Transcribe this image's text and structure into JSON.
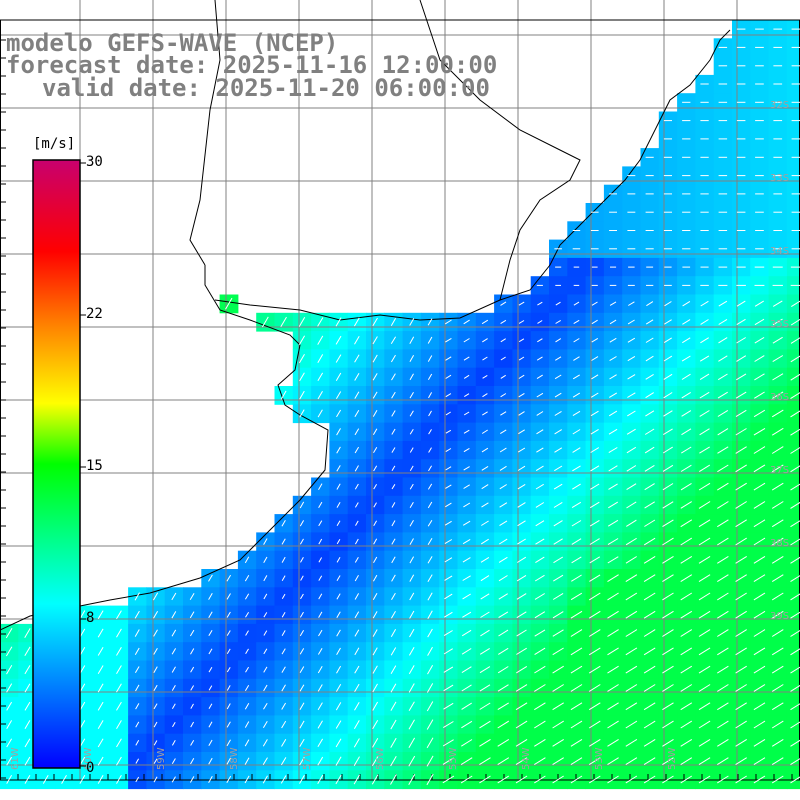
{
  "header": {
    "title_model": "modelo GEFS-WAVE (NCEP)",
    "title_forecast": "forecast date: 2025-11-16 12:00:00",
    "title_valid": "valid date: 2025-11-20 06:00:00"
  },
  "colorbar": {
    "unit_label": "[m/s]",
    "ticks": [
      "30",
      "22",
      "15",
      "8",
      "0"
    ],
    "colors": [
      "#0000ff",
      "#00ffff",
      "#00ff00",
      "#ffff00",
      "#ff8000",
      "#ff0000",
      "#c8006e"
    ]
  },
  "map": {
    "variable": "wind speed with direction arrows",
    "lon_labels": [
      "61W",
      "60W",
      "59W",
      "58W",
      "57W",
      "56W",
      "55W",
      "54W",
      "53W",
      "52W"
    ],
    "lat_labels": [
      "32S",
      "33S",
      "34S",
      "35S",
      "36S",
      "37S",
      "38S",
      "39S"
    ],
    "land_color": "#ffffff",
    "coast_color": "#000000",
    "grid_color": "#808080"
  }
}
